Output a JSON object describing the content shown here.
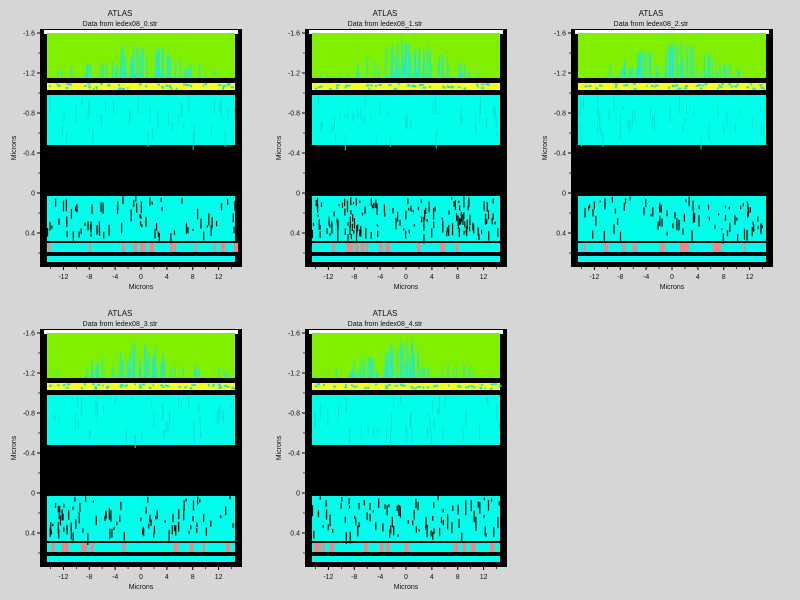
{
  "chart_data": [
    {
      "type": "heatmap",
      "title": "ATLAS",
      "subtitle": "Data from ledex08_0.str",
      "xlabel": "Microns",
      "ylabel": "Microns",
      "xlim": [
        -15,
        15
      ],
      "ylim": [
        -1.6,
        0.7
      ],
      "xticks": [
        "-12",
        "-8",
        "-4",
        "0",
        "4",
        "8",
        "12"
      ],
      "yticks": [
        "-1.6",
        "-1.2",
        "-0.8",
        "-0.4",
        "0",
        "0.4"
      ],
      "variant": 0,
      "bands": [
        {
          "from": -1.6,
          "to": -1.15,
          "color": "#80f000"
        },
        {
          "from": -1.1,
          "to": -1.03,
          "color": "#f6ff20"
        },
        {
          "from": -0.98,
          "to": -0.48,
          "color": "#00ffea"
        },
        {
          "from": -0.48,
          "to": 0.03,
          "color": "#000000"
        },
        {
          "from": 0.03,
          "to": 0.48,
          "color": "#00ffea"
        },
        {
          "from": 0.5,
          "to": 0.59,
          "color": "#00ffea"
        },
        {
          "from": 0.63,
          "to": 0.69,
          "color": "#00ffea"
        }
      ]
    },
    {
      "type": "heatmap",
      "title": "ATLAS",
      "subtitle": "Data from ledex08_1.str",
      "xlabel": "Microns",
      "ylabel": "Microns",
      "xlim": [
        -15,
        15
      ],
      "ylim": [
        -1.6,
        0.7
      ],
      "xticks": [
        "-12",
        "-8",
        "-4",
        "0",
        "4",
        "8",
        "12"
      ],
      "yticks": [
        "-1.6",
        "-1.2",
        "-0.8",
        "-0.4",
        "0",
        "0.4"
      ],
      "variant": 1,
      "bands": [
        {
          "from": -1.6,
          "to": -1.15,
          "color": "#80f000"
        },
        {
          "from": -1.1,
          "to": -1.03,
          "color": "#f6ff20"
        },
        {
          "from": -0.98,
          "to": -0.48,
          "color": "#00ffea"
        },
        {
          "from": -0.48,
          "to": 0.03,
          "color": "#000000"
        },
        {
          "from": 0.03,
          "to": 0.48,
          "color": "#00ffea"
        },
        {
          "from": 0.5,
          "to": 0.59,
          "color": "#00ffea"
        },
        {
          "from": 0.63,
          "to": 0.69,
          "color": "#00ffea"
        }
      ]
    },
    {
      "type": "heatmap",
      "title": "ATLAS",
      "subtitle": "Data from ledex08_2.str",
      "xlabel": "Microns",
      "ylabel": "Microns",
      "xlim": [
        -15,
        15
      ],
      "ylim": [
        -1.6,
        0.7
      ],
      "xticks": [
        "-12",
        "-8",
        "-4",
        "0",
        "4",
        "8",
        "12"
      ],
      "yticks": [
        "-1.6",
        "-1.2",
        "-0.8",
        "-0.4",
        "0",
        "0.4"
      ],
      "variant": 2,
      "bands": [
        {
          "from": -1.6,
          "to": -1.15,
          "color": "#80f000"
        },
        {
          "from": -1.1,
          "to": -1.03,
          "color": "#f6ff20"
        },
        {
          "from": -0.98,
          "to": -0.48,
          "color": "#00ffea"
        },
        {
          "from": -0.48,
          "to": 0.03,
          "color": "#000000"
        },
        {
          "from": 0.03,
          "to": 0.48,
          "color": "#00ffea"
        },
        {
          "from": 0.5,
          "to": 0.59,
          "color": "#00ffea"
        },
        {
          "from": 0.63,
          "to": 0.69,
          "color": "#00ffea"
        }
      ]
    },
    {
      "type": "heatmap",
      "title": "ATLAS",
      "subtitle": "Data from ledex08_3.str",
      "xlabel": "Microns",
      "ylabel": "Microns",
      "xlim": [
        -15,
        15
      ],
      "ylim": [
        -1.6,
        0.7
      ],
      "xticks": [
        "-12",
        "-8",
        "-4",
        "0",
        "4",
        "8",
        "12"
      ],
      "yticks": [
        "-1.6",
        "-1.2",
        "-0.8",
        "-0.4",
        "0",
        "0.4"
      ],
      "variant": 3,
      "bands": [
        {
          "from": -1.6,
          "to": -1.15,
          "color": "#80f000"
        },
        {
          "from": -1.1,
          "to": -1.03,
          "color": "#f6ff20"
        },
        {
          "from": -0.98,
          "to": -0.48,
          "color": "#00ffea"
        },
        {
          "from": -0.48,
          "to": 0.03,
          "color": "#000000"
        },
        {
          "from": 0.03,
          "to": 0.48,
          "color": "#00ffea"
        },
        {
          "from": 0.5,
          "to": 0.59,
          "color": "#00ffea"
        },
        {
          "from": 0.63,
          "to": 0.69,
          "color": "#00ffea"
        }
      ]
    },
    {
      "type": "heatmap",
      "title": "ATLAS",
      "subtitle": "Data from ledex08_4.str",
      "xlabel": "Microns",
      "ylabel": "Microns",
      "xlim": [
        -15,
        15
      ],
      "ylim": [
        -1.6,
        0.7
      ],
      "xticks": [
        "-12",
        "-8",
        "-4",
        "0",
        "4",
        "8",
        "12"
      ],
      "yticks": [
        "-1.6",
        "-1.2",
        "-0.8",
        "-0.4",
        "0",
        "0.4"
      ],
      "variant": 4,
      "bands": [
        {
          "from": -1.6,
          "to": -1.15,
          "color": "#80f000"
        },
        {
          "from": -1.1,
          "to": -1.03,
          "color": "#f6ff20"
        },
        {
          "from": -0.98,
          "to": -0.48,
          "color": "#00ffea"
        },
        {
          "from": -0.48,
          "to": 0.03,
          "color": "#000000"
        },
        {
          "from": 0.03,
          "to": 0.48,
          "color": "#00ffea"
        },
        {
          "from": 0.5,
          "to": 0.59,
          "color": "#00ffea"
        },
        {
          "from": 0.63,
          "to": 0.69,
          "color": "#00ffea"
        }
      ]
    }
  ]
}
